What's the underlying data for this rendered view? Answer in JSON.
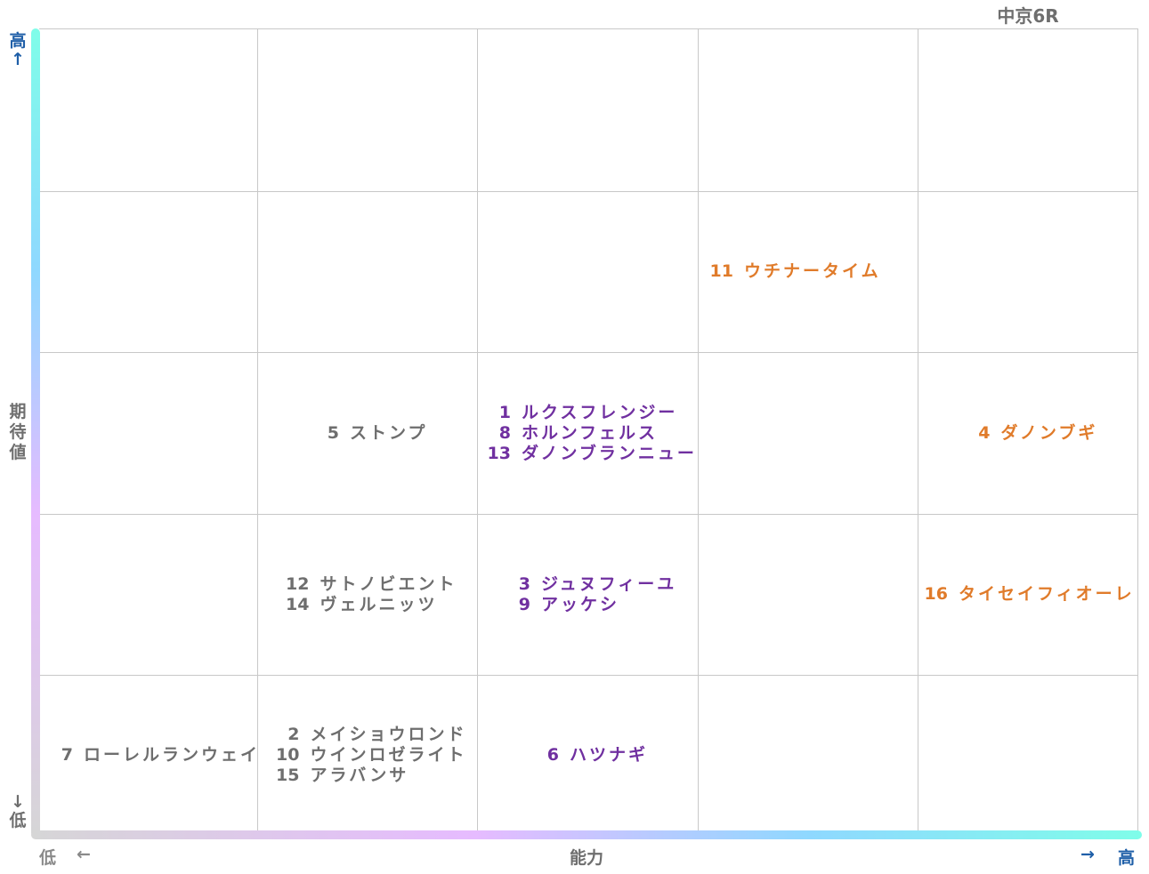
{
  "race": "中京6R",
  "chart_data": {
    "type": "table",
    "xlabel": "能力",
    "ylabel": "期待値",
    "x_low": "低",
    "x_high": "高",
    "y_low": "低",
    "y_high": "高",
    "x_arrow_low": "←",
    "x_arrow_high": "→",
    "y_arrow_high": "↑",
    "y_arrow_low": "↓",
    "columns": 5,
    "rows": 5,
    "grid": true,
    "cells": [
      {
        "col": 3,
        "row": 1,
        "align": "left",
        "entries": [
          {
            "num": "11",
            "name": "ウチナータイム",
            "color": "#e07b2a"
          }
        ]
      },
      {
        "col": 1,
        "row": 2,
        "align": "center",
        "entries": [
          {
            "num": "5",
            "name": "ストンプ",
            "color": "#6e6e6e"
          }
        ]
      },
      {
        "col": 2,
        "row": 2,
        "align": "center",
        "entries": [
          {
            "num": "1",
            "name": "ルクスフレンジー",
            "color": "#7030a0"
          },
          {
            "num": "8",
            "name": "ホルンフェルス",
            "color": "#7030a0"
          },
          {
            "num": "13",
            "name": "ダノンブランニュー",
            "color": "#7030a0"
          }
        ]
      },
      {
        "col": 4,
        "row": 2,
        "align": "center",
        "entries": [
          {
            "num": "4",
            "name": "ダノンブギ",
            "color": "#e07b2a"
          }
        ]
      },
      {
        "col": 1,
        "row": 3,
        "align": "center",
        "entries": [
          {
            "num": "12",
            "name": "サトノビエント",
            "color": "#6e6e6e"
          },
          {
            "num": "14",
            "name": "ヴェルニッツ",
            "color": "#6e6e6e"
          }
        ]
      },
      {
        "col": 2,
        "row": 3,
        "align": "center",
        "entries": [
          {
            "num": "3",
            "name": "ジュヌフィーユ",
            "color": "#7030a0"
          },
          {
            "num": "9",
            "name": "アッケシ",
            "color": "#7030a0"
          }
        ]
      },
      {
        "col": 4,
        "row": 3,
        "align": "center",
        "entries": [
          {
            "num": "16",
            "name": "タイセイフィオーレ",
            "color": "#e07b2a"
          }
        ]
      },
      {
        "col": 0,
        "row": 4,
        "align": "center",
        "entries": [
          {
            "num": "7",
            "name": "ローレルランウェイ",
            "color": "#6e6e6e"
          }
        ]
      },
      {
        "col": 1,
        "row": 4,
        "align": "center",
        "entries": [
          {
            "num": "2",
            "name": "メイショウロンド",
            "color": "#6e6e6e"
          },
          {
            "num": "10",
            "name": "ウインロゼライト",
            "color": "#6e6e6e"
          },
          {
            "num": "15",
            "name": "アラバンサ",
            "color": "#6e6e6e"
          }
        ]
      },
      {
        "col": 2,
        "row": 4,
        "align": "center",
        "entries": [
          {
            "num": "6",
            "name": "ハツナギ",
            "color": "#7030a0"
          }
        ]
      }
    ]
  }
}
